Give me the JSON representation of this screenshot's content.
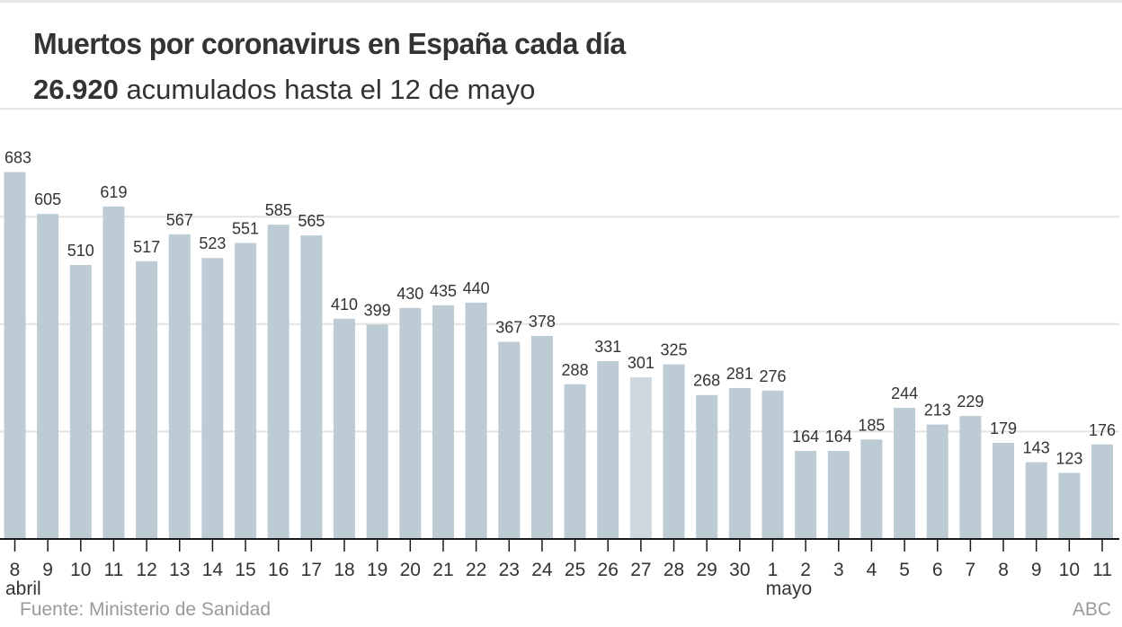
{
  "header": {
    "title": "Muertos por coronavirus en España cada día",
    "subtitle_bold": "26.920",
    "subtitle_rest": " acumulados hasta el 12 de mayo"
  },
  "footer": {
    "source": "Fuente: Ministerio de Sanidad",
    "credit": "ABC"
  },
  "colors": {
    "bar": "#bccbd4",
    "bar_highlight": "#cdd8df",
    "gridline": "#e3e3e3",
    "axis": "#1a1a1a",
    "text": "#333333"
  },
  "chart_data": {
    "type": "bar",
    "title": "Muertos por coronavirus en España cada día",
    "subtitle": "26.920 acumulados hasta el 12 de mayo",
    "xlabel": "",
    "ylabel": "",
    "ylim": [
      0,
      683
    ],
    "gridlines": [
      200,
      400,
      600
    ],
    "grid": true,
    "categories": [
      "8",
      "9",
      "10",
      "11",
      "12",
      "13",
      "14",
      "15",
      "16",
      "17",
      "18",
      "19",
      "20",
      "21",
      "22",
      "23",
      "24",
      "25",
      "26",
      "27",
      "28",
      "29",
      "30",
      "1",
      "2",
      "3",
      "4",
      "5",
      "6",
      "7",
      "8",
      "9",
      "10",
      "11"
    ],
    "month_labels": [
      {
        "index": 0,
        "label": "abril"
      },
      {
        "index": 23,
        "label": "mayo"
      }
    ],
    "values": [
      683,
      605,
      510,
      619,
      517,
      567,
      523,
      551,
      585,
      565,
      410,
      399,
      430,
      435,
      440,
      367,
      378,
      288,
      331,
      301,
      325,
      268,
      281,
      276,
      164,
      164,
      185,
      244,
      213,
      229,
      179,
      143,
      123,
      176
    ],
    "highlighted_indices": [
      19
    ],
    "data_labels": true
  }
}
